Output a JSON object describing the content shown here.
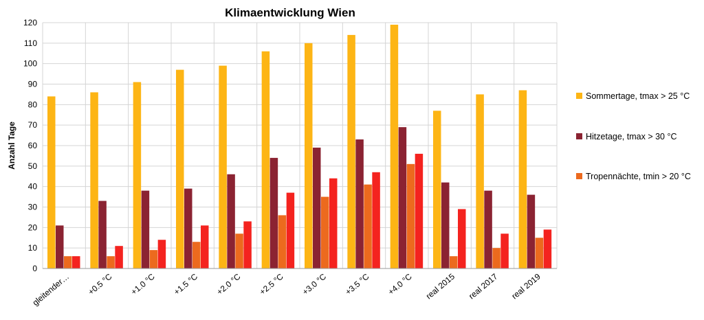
{
  "chart_data": {
    "type": "bar",
    "title": "Klimaentwicklung Wien",
    "xlabel": "",
    "ylabel": "Anzahl Tage",
    "ylim": [
      0,
      120
    ],
    "ytick_step": 10,
    "grid": true,
    "legend_position": "right",
    "categories": [
      "gleitender…",
      "+0.5 °C",
      "+1.0 °C",
      "+1.5 °C",
      "+2.0 °C",
      "+2.5 °C",
      "+3.0 °C",
      "+3.5 °C",
      "+4.0 °C",
      "real 2015",
      "real 2017",
      "real 2019"
    ],
    "series": [
      {
        "name": "Sommertage, tmax > 25 °C",
        "color": "#FDB515",
        "legend": true,
        "values": [
          84,
          86,
          91,
          97,
          99,
          106,
          110,
          114,
          119,
          77,
          85,
          87
        ]
      },
      {
        "name": "Hitzetage, tmax > 30 °C",
        "color": "#8B2332",
        "legend": true,
        "values": [
          21,
          33,
          38,
          39,
          46,
          54,
          59,
          63,
          69,
          42,
          38,
          36
        ]
      },
      {
        "name": "Tropennächte, tmin > 20 °C",
        "color": "#EC6A1E",
        "legend": true,
        "values": [
          6,
          6,
          9,
          13,
          17,
          26,
          35,
          41,
          51,
          6,
          10,
          15
        ]
      },
      {
        "name": "",
        "color": "#F4231F",
        "legend": false,
        "values": [
          6,
          11,
          14,
          21,
          23,
          37,
          44,
          47,
          56,
          29,
          17,
          19
        ]
      }
    ]
  }
}
